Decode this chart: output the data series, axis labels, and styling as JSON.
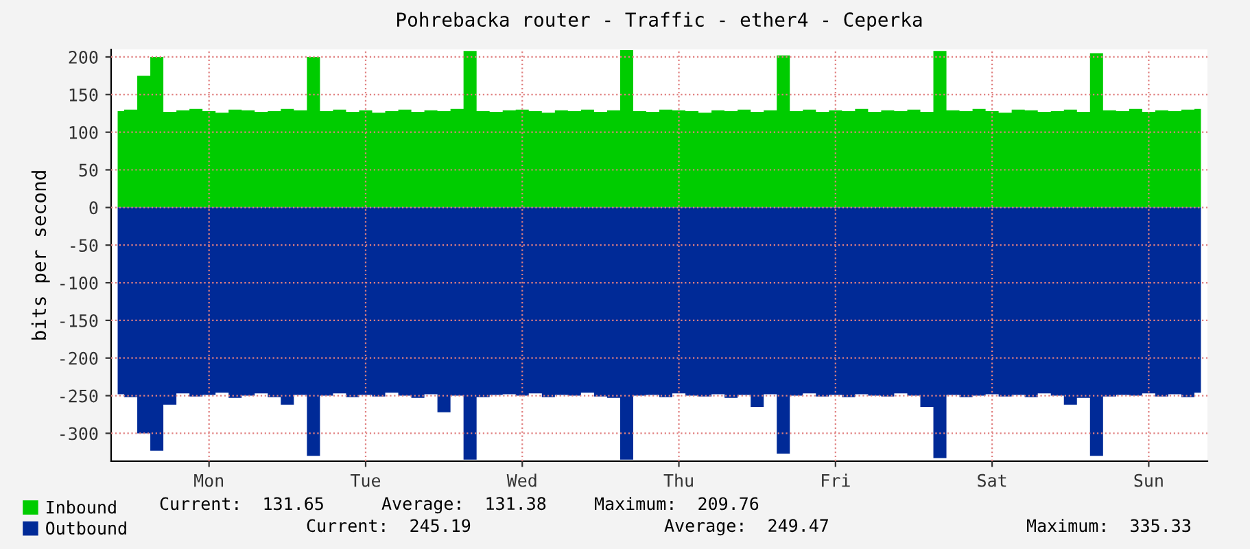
{
  "chart_data": {
    "type": "area",
    "title": "Pohrebacka router - Traffic - ether4 - Ceperka",
    "ylabel": "bits per second",
    "categories": [
      null,
      null,
      null,
      null,
      null,
      null,
      null,
      "Mon",
      null,
      null,
      null,
      null,
      null,
      null,
      null,
      null,
      null,
      null,
      null,
      "Tue",
      null,
      null,
      null,
      null,
      null,
      null,
      null,
      null,
      null,
      null,
      null,
      "Wed",
      null,
      null,
      null,
      null,
      null,
      null,
      null,
      null,
      null,
      null,
      null,
      "Thu",
      null,
      null,
      null,
      null,
      null,
      null,
      null,
      null,
      null,
      null,
      null,
      "Fri",
      null,
      null,
      null,
      null,
      null,
      null,
      null,
      null,
      null,
      null,
      null,
      "Sat",
      null,
      null,
      null,
      null,
      null,
      null,
      null,
      null,
      null,
      null,
      null,
      "Sun",
      null,
      null,
      null,
      null
    ],
    "series": [
      {
        "name": "Inbound",
        "color": "#00cc00",
        "values": [
          128,
          130,
          175,
          200,
          127,
          129,
          131,
          128,
          126,
          130,
          129,
          127,
          128,
          131,
          129,
          200,
          128,
          130,
          127,
          129,
          126,
          128,
          130,
          127,
          129,
          128,
          131,
          208,
          128,
          127,
          129,
          130,
          128,
          126,
          129,
          128,
          130,
          127,
          129,
          209,
          128,
          127,
          130,
          129,
          128,
          126,
          129,
          128,
          130,
          127,
          129,
          202,
          128,
          130,
          127,
          129,
          128,
          131,
          127,
          129,
          128,
          130,
          127,
          208,
          129,
          128,
          131,
          128,
          126,
          130,
          129,
          127,
          128,
          130,
          127,
          205,
          129,
          128,
          131,
          127,
          129,
          128,
          130,
          131
        ]
      },
      {
        "name": "Outbound",
        "color": "#002a97",
        "values": [
          -248,
          -252,
          -300,
          -323,
          -262,
          -247,
          -251,
          -249,
          -246,
          -253,
          -250,
          -247,
          -252,
          -262,
          -249,
          -330,
          -250,
          -247,
          -252,
          -249,
          -251,
          -246,
          -250,
          -253,
          -248,
          -272,
          -250,
          -335,
          -252,
          -249,
          -248,
          -250,
          -247,
          -252,
          -249,
          -250,
          -246,
          -251,
          -253,
          -335,
          -250,
          -249,
          -252,
          -247,
          -250,
          -251,
          -248,
          -253,
          -249,
          -265,
          -248,
          -327,
          -250,
          -247,
          -251,
          -249,
          -252,
          -248,
          -250,
          -251,
          -247,
          -250,
          -265,
          -333,
          -249,
          -252,
          -250,
          -248,
          -251,
          -249,
          -252,
          -247,
          -250,
          -262,
          -253,
          -330,
          -251,
          -249,
          -250,
          -247,
          -251,
          -248,
          -252,
          -246
        ]
      }
    ],
    "ylim": [
      -337,
      210
    ],
    "yticks": [
      -300,
      -250,
      -200,
      -150,
      -100,
      -50,
      0,
      50,
      100,
      150,
      200
    ],
    "grid": true,
    "legend": "bottom left",
    "annotations": [
      "Current:  131.65",
      "Average:  131.38",
      "Maximum:  209.76",
      "Current:  245.19",
      "Average:  249.47",
      "Maximum:  335.33"
    ]
  }
}
